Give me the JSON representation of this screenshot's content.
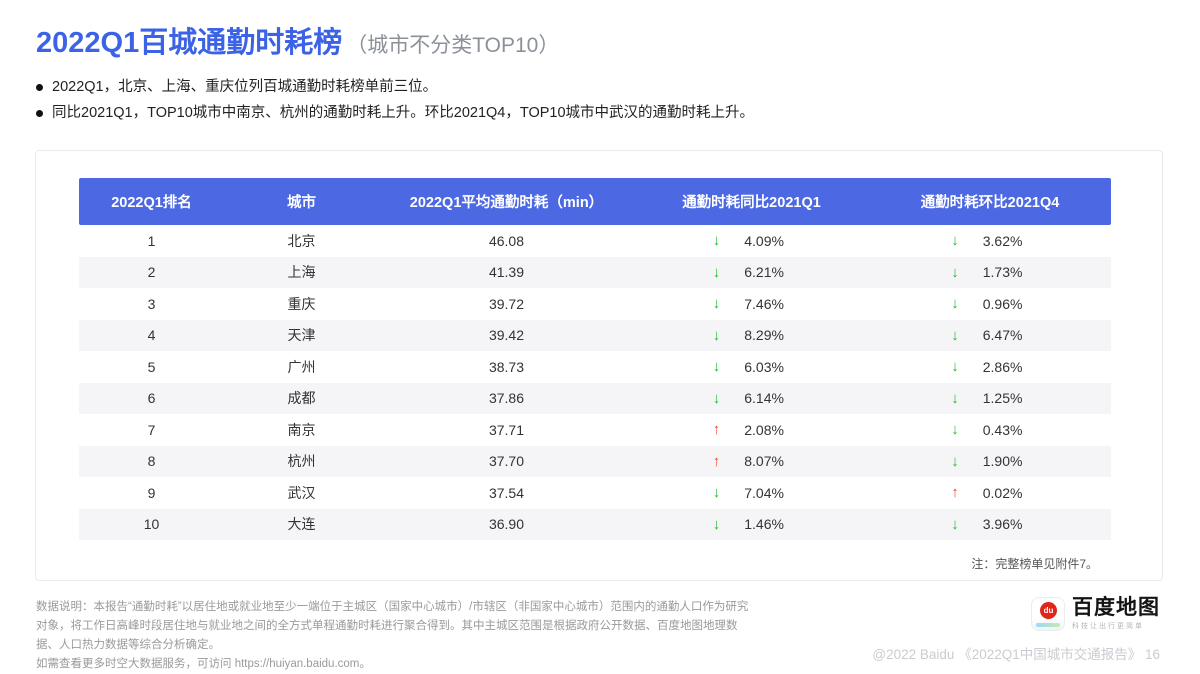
{
  "header": {
    "title": "2022Q1百城通勤时耗榜",
    "subtitle": "（城市不分类TOP10）",
    "bullets": [
      "2022Q1，北京、上海、重庆位列百城通勤时耗榜单前三位。",
      "同比2021Q1，TOP10城市中南京、杭州的通勤时耗上升。环比2021Q4，TOP10城市中武汉的通勤时耗上升。"
    ]
  },
  "table": {
    "columns": [
      "2022Q1排名",
      "城市",
      "2022Q1平均通勤时耗（min）",
      "通勤时耗同比2021Q1",
      "通勤时耗环比2021Q4"
    ],
    "rows": [
      {
        "rank": "1",
        "city": "北京",
        "time": "46.08",
        "yoy": {
          "dir": "down",
          "value": "4.09%"
        },
        "qoq": {
          "dir": "down",
          "value": "3.62%"
        }
      },
      {
        "rank": "2",
        "city": "上海",
        "time": "41.39",
        "yoy": {
          "dir": "down",
          "value": "6.21%"
        },
        "qoq": {
          "dir": "down",
          "value": "1.73%"
        }
      },
      {
        "rank": "3",
        "city": "重庆",
        "time": "39.72",
        "yoy": {
          "dir": "down",
          "value": "7.46%"
        },
        "qoq": {
          "dir": "down",
          "value": "0.96%"
        }
      },
      {
        "rank": "4",
        "city": "天津",
        "time": "39.42",
        "yoy": {
          "dir": "down",
          "value": "8.29%"
        },
        "qoq": {
          "dir": "down",
          "value": "6.47%"
        }
      },
      {
        "rank": "5",
        "city": "广州",
        "time": "38.73",
        "yoy": {
          "dir": "down",
          "value": "6.03%"
        },
        "qoq": {
          "dir": "down",
          "value": "2.86%"
        }
      },
      {
        "rank": "6",
        "city": "成都",
        "time": "37.86",
        "yoy": {
          "dir": "down",
          "value": "6.14%"
        },
        "qoq": {
          "dir": "down",
          "value": "1.25%"
        }
      },
      {
        "rank": "7",
        "city": "南京",
        "time": "37.71",
        "yoy": {
          "dir": "up",
          "value": "2.08%"
        },
        "qoq": {
          "dir": "down",
          "value": "0.43%"
        }
      },
      {
        "rank": "8",
        "city": "杭州",
        "time": "37.70",
        "yoy": {
          "dir": "up",
          "value": "8.07%"
        },
        "qoq": {
          "dir": "down",
          "value": "1.90%"
        }
      },
      {
        "rank": "9",
        "city": "武汉",
        "time": "37.54",
        "yoy": {
          "dir": "down",
          "value": "7.04%"
        },
        "qoq": {
          "dir": "up",
          "value": "0.02%"
        }
      },
      {
        "rank": "10",
        "city": "大连",
        "time": "36.90",
        "yoy": {
          "dir": "down",
          "value": "1.46%"
        },
        "qoq": {
          "dir": "down",
          "value": "3.96%"
        }
      }
    ],
    "note": "注：完整榜单见附件7。"
  },
  "footer": {
    "description": "数据说明：本报告“通勤时耗”以居住地或就业地至少一端位于主城区（国家中心城市）/市辖区（非国家中心城市）范围内的通勤人口作为研究对象，将工作日高峰时段居住地与就业地之间的全方式单程通勤时耗进行聚合得到。其中主城区范围是根据政府公开数据、百度地图地理数据、人口热力数据等综合分析确定。",
    "more_prefix": "如需查看更多时空大数据服务，可访问 ",
    "more_link": "https://huiyan.baidu.com",
    "more_suffix": "。",
    "logo": {
      "name": "百度地图",
      "tagline": "科技让出行更简单",
      "pin_label": "du"
    },
    "watermark": "@2022 Baidu 《2022Q1中国城市交通报告》 16"
  },
  "icons": {
    "up": "↑",
    "down": "↓"
  },
  "colors": {
    "accent_blue": "#3c63e6",
    "header_blue": "#4c68e2",
    "down_green": "#1ebe2e",
    "up_red": "#f4482f"
  }
}
